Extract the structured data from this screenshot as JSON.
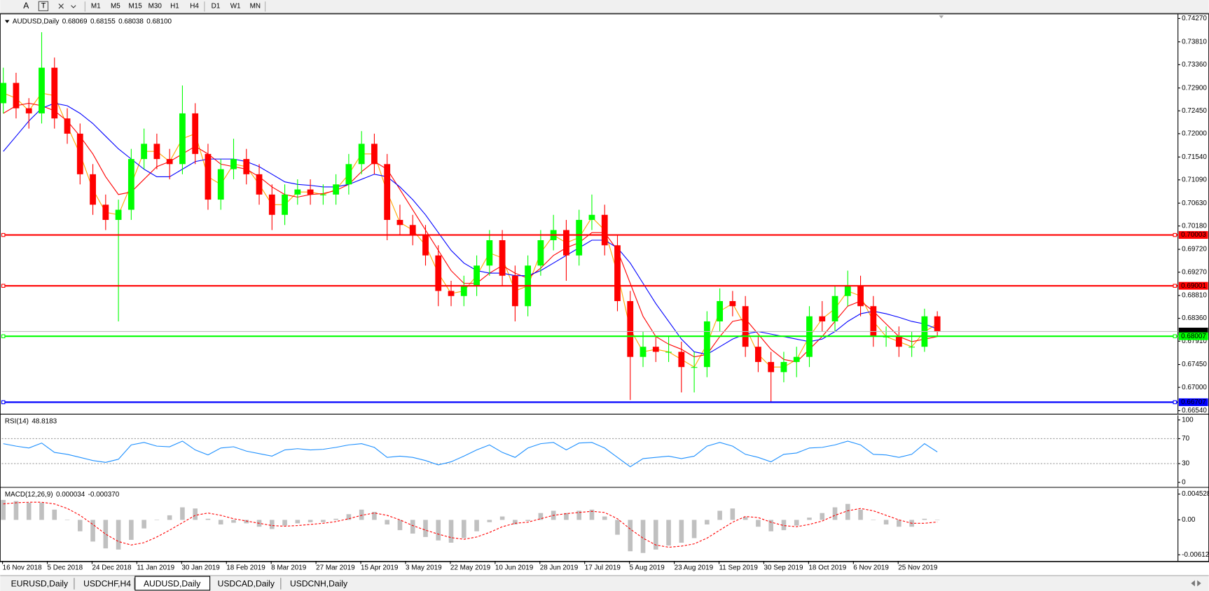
{
  "toolbar": {
    "tools": [
      "A",
      "T"
    ],
    "timeframes": [
      "M1",
      "M5",
      "M15",
      "M30",
      "H1",
      "H4",
      "D1",
      "W1",
      "MN"
    ]
  },
  "tabs": [
    "EURUSD,Daily",
    "USDCHF,H4",
    "AUDUSD,Daily",
    "USDCAD,Daily",
    "USDCNH,Daily"
  ],
  "active_tab": 2,
  "chart_data": [
    {
      "type": "candlestick",
      "title": "AUDUSD,Daily",
      "quote": [
        "0.68069",
        "0.68155",
        "0.68038",
        "0.68100"
      ],
      "ylim": [
        0.66479,
        0.74361
      ],
      "yticks": [
        {
          "value": 0.7427,
          "label": "0.74270"
        },
        {
          "value": 0.7381,
          "label": "0.73810"
        },
        {
          "value": 0.7336,
          "label": "0.73360"
        },
        {
          "value": 0.729,
          "label": "0.72900"
        },
        {
          "value": 0.7245,
          "label": "0.72450"
        },
        {
          "value": 0.72,
          "label": "0.72000"
        },
        {
          "value": 0.7154,
          "label": "0.71540"
        },
        {
          "value": 0.7109,
          "label": "0.71090"
        },
        {
          "value": 0.7063,
          "label": "0.70630"
        },
        {
          "value": 0.7018,
          "label": "0.70180"
        },
        {
          "value": 0.6972,
          "label": "0.69720"
        },
        {
          "value": 0.6927,
          "label": "0.69270"
        },
        {
          "value": 0.6881,
          "label": "0.68810"
        },
        {
          "value": 0.6836,
          "label": "0.68360"
        },
        {
          "value": 0.6791,
          "label": "0.67910"
        },
        {
          "value": 0.6745,
          "label": "0.67450"
        },
        {
          "value": 0.67,
          "label": "0.67000"
        },
        {
          "value": 0.6654,
          "label": "0.66540"
        }
      ],
      "up_color": "#00ff00",
      "down_color": "#ff0000",
      "candles": [
        [
          0.726,
          0.733,
          0.724,
          0.73
        ],
        [
          0.73,
          0.732,
          0.723,
          0.725
        ],
        [
          0.725,
          0.727,
          0.721,
          0.724
        ],
        [
          0.724,
          0.74,
          0.722,
          0.733
        ],
        [
          0.733,
          0.735,
          0.721,
          0.723
        ],
        [
          0.723,
          0.725,
          0.718,
          0.72
        ],
        [
          0.72,
          0.722,
          0.71,
          0.712
        ],
        [
          0.712,
          0.714,
          0.704,
          0.706
        ],
        [
          0.706,
          0.708,
          0.701,
          0.703
        ],
        [
          0.703,
          0.707,
          0.683,
          0.705
        ],
        [
          0.705,
          0.717,
          0.703,
          0.715
        ],
        [
          0.715,
          0.721,
          0.713,
          0.718
        ],
        [
          0.718,
          0.72,
          0.713,
          0.715
        ],
        [
          0.715,
          0.717,
          0.711,
          0.714
        ],
        [
          0.714,
          0.7295,
          0.712,
          0.724
        ],
        [
          0.724,
          0.726,
          0.714,
          0.716
        ],
        [
          0.716,
          0.718,
          0.705,
          0.707
        ],
        [
          0.707,
          0.715,
          0.705,
          0.713
        ],
        [
          0.713,
          0.719,
          0.711,
          0.715
        ],
        [
          0.715,
          0.717,
          0.71,
          0.712
        ],
        [
          0.712,
          0.714,
          0.706,
          0.708
        ],
        [
          0.708,
          0.71,
          0.701,
          0.704
        ],
        [
          0.704,
          0.71,
          0.702,
          0.708
        ],
        [
          0.708,
          0.711,
          0.706,
          0.709
        ],
        [
          0.709,
          0.711,
          0.706,
          0.708
        ],
        [
          0.708,
          0.71,
          0.706,
          0.708
        ],
        [
          0.708,
          0.712,
          0.706,
          0.71
        ],
        [
          0.71,
          0.716,
          0.708,
          0.714
        ],
        [
          0.714,
          0.7205,
          0.712,
          0.718
        ],
        [
          0.718,
          0.72,
          0.712,
          0.714
        ],
        [
          0.714,
          0.716,
          0.699,
          0.703
        ],
        [
          0.703,
          0.706,
          0.7,
          0.702
        ],
        [
          0.702,
          0.704,
          0.698,
          0.7
        ],
        [
          0.7,
          0.702,
          0.694,
          0.696
        ],
        [
          0.696,
          0.698,
          0.686,
          0.689
        ],
        [
          0.689,
          0.691,
          0.686,
          0.688
        ],
        [
          0.688,
          0.692,
          0.686,
          0.69
        ],
        [
          0.69,
          0.696,
          0.688,
          0.694
        ],
        [
          0.694,
          0.701,
          0.692,
          0.699
        ],
        [
          0.699,
          0.701,
          0.69,
          0.692
        ],
        [
          0.692,
          0.694,
          0.683,
          0.686
        ],
        [
          0.686,
          0.696,
          0.684,
          0.694
        ],
        [
          0.694,
          0.701,
          0.692,
          0.699
        ],
        [
          0.699,
          0.704,
          0.697,
          0.701
        ],
        [
          0.701,
          0.703,
          0.691,
          0.696
        ],
        [
          0.696,
          0.705,
          0.694,
          0.703
        ],
        [
          0.703,
          0.708,
          0.701,
          0.704
        ],
        [
          0.704,
          0.706,
          0.696,
          0.698
        ],
        [
          0.698,
          0.7,
          0.685,
          0.687
        ],
        [
          0.687,
          0.689,
          0.6675,
          0.676
        ],
        [
          0.676,
          0.681,
          0.674,
          0.678
        ],
        [
          0.678,
          0.68,
          0.675,
          0.677
        ],
        [
          0.677,
          0.68,
          0.675,
          0.677
        ],
        [
          0.677,
          0.679,
          0.669,
          0.674
        ],
        [
          0.674,
          0.677,
          0.669,
          0.674
        ],
        [
          0.674,
          0.685,
          0.672,
          0.683
        ],
        [
          0.683,
          0.6895,
          0.681,
          0.687
        ],
        [
          0.687,
          0.689,
          0.684,
          0.686
        ],
        [
          0.686,
          0.688,
          0.676,
          0.678
        ],
        [
          0.678,
          0.68,
          0.673,
          0.675
        ],
        [
          0.675,
          0.677,
          0.667,
          0.673
        ],
        [
          0.673,
          0.677,
          0.671,
          0.675
        ],
        [
          0.675,
          0.678,
          0.672,
          0.676
        ],
        [
          0.676,
          0.686,
          0.674,
          0.684
        ],
        [
          0.684,
          0.687,
          0.681,
          0.683
        ],
        [
          0.683,
          0.69,
          0.681,
          0.688
        ],
        [
          0.688,
          0.693,
          0.686,
          0.69
        ],
        [
          0.69,
          0.692,
          0.684,
          0.686
        ],
        [
          0.686,
          0.688,
          0.678,
          0.68
        ],
        [
          0.68,
          0.682,
          0.678,
          0.68
        ],
        [
          0.68,
          0.682,
          0.676,
          0.678
        ],
        [
          0.678,
          0.681,
          0.676,
          0.678
        ],
        [
          0.678,
          0.6855,
          0.677,
          0.684
        ],
        [
          0.684,
          0.685,
          0.68,
          0.681
        ]
      ],
      "series": [
        {
          "color": "#ffa500",
          "values": [
            0.728,
            0.727,
            0.7245,
            0.728,
            0.7275,
            0.7215,
            0.716,
            0.709,
            0.7045,
            0.704,
            0.71,
            0.7165,
            0.7165,
            0.7145,
            0.719,
            0.72,
            0.7115,
            0.71,
            0.714,
            0.7135,
            0.71,
            0.706,
            0.706,
            0.7085,
            0.7085,
            0.708,
            0.709,
            0.712,
            0.716,
            0.716,
            0.7085,
            0.7025,
            0.701,
            0.698,
            0.6925,
            0.6885,
            0.689,
            0.692,
            0.6965,
            0.6955,
            0.689,
            0.69,
            0.6965,
            0.7,
            0.6985,
            0.6995,
            0.7035,
            0.701,
            0.6925,
            0.6815,
            0.677,
            0.6775,
            0.677,
            0.6755,
            0.674,
            0.6785,
            0.685,
            0.6865,
            0.682,
            0.6765,
            0.674,
            0.674,
            0.6755,
            0.68,
            0.6835,
            0.6855,
            0.689,
            0.688,
            0.683,
            0.68,
            0.679,
            0.678,
            0.681,
            0.6825
          ]
        },
        {
          "color": "#ff0000",
          "values": [
            0.724,
            0.7255,
            0.726,
            0.7255,
            0.7245,
            0.7225,
            0.7195,
            0.716,
            0.7115,
            0.708,
            0.7085,
            0.711,
            0.7135,
            0.7145,
            0.716,
            0.7175,
            0.716,
            0.714,
            0.7135,
            0.713,
            0.7115,
            0.7095,
            0.708,
            0.7075,
            0.708,
            0.7082,
            0.7088,
            0.71,
            0.7125,
            0.7145,
            0.713,
            0.709,
            0.705,
            0.701,
            0.697,
            0.693,
            0.6905,
            0.6905,
            0.6925,
            0.694,
            0.6925,
            0.6915,
            0.6935,
            0.696,
            0.6975,
            0.6985,
            0.7005,
            0.7005,
            0.697,
            0.6905,
            0.684,
            0.68,
            0.6785,
            0.6775,
            0.676,
            0.6765,
            0.68,
            0.683,
            0.6835,
            0.6805,
            0.6775,
            0.6755,
            0.675,
            0.6775,
            0.68,
            0.683,
            0.686,
            0.687,
            0.685,
            0.6825,
            0.68,
            0.679,
            0.6795,
            0.68
          ]
        },
        {
          "color": "#0000ff",
          "values": [
            0.7165,
            0.7195,
            0.7225,
            0.725,
            0.726,
            0.7255,
            0.724,
            0.722,
            0.7195,
            0.717,
            0.715,
            0.713,
            0.7115,
            0.7115,
            0.713,
            0.7145,
            0.715,
            0.715,
            0.715,
            0.7145,
            0.7135,
            0.712,
            0.7105,
            0.71,
            0.7098,
            0.7095,
            0.7095,
            0.71,
            0.711,
            0.712,
            0.7115,
            0.7095,
            0.707,
            0.704,
            0.7005,
            0.697,
            0.6945,
            0.693,
            0.6925,
            0.6925,
            0.692,
            0.692,
            0.693,
            0.6945,
            0.696,
            0.6975,
            0.699,
            0.699,
            0.6975,
            0.6945,
            0.6905,
            0.6865,
            0.683,
            0.6795,
            0.677,
            0.6765,
            0.678,
            0.6795,
            0.6805,
            0.681,
            0.6805,
            0.68,
            0.6795,
            0.679,
            0.6795,
            0.681,
            0.683,
            0.6845,
            0.685,
            0.6845,
            0.6838,
            0.683,
            0.6825,
            0.6815
          ]
        }
      ],
      "levels": [
        {
          "value": 0.70003,
          "label": "0.70003",
          "color": "#ff0000"
        },
        {
          "value": 0.69001,
          "label": "0.69001",
          "color": "#ff0000"
        },
        {
          "value": 0.68007,
          "label": "0.68007",
          "color": "#00ff00"
        },
        {
          "value": 0.66707,
          "label": "0.66707",
          "color": "#0000ff"
        }
      ],
      "current": {
        "value": 0.681,
        "label": "0.68100"
      },
      "date_labels": [
        "16 Nov 2018",
        "5 Dec 2018",
        "24 Dec 2018",
        "11 Jan 2019",
        "30 Jan 2019",
        "18 Feb 2019",
        "8 Mar 2019",
        "27 Mar 2019",
        "15 Apr 2019",
        "3 May 2019",
        "22 May 2019",
        "10 Jun 2019",
        "28 Jun 2019",
        "17 Jul 2019",
        "5 Aug 2019",
        "23 Aug 2019",
        "11 Sep 2019",
        "30 Sep 2019",
        "18 Oct 2019",
        "6 Nov 2019",
        "25 Nov 2019"
      ]
    },
    {
      "type": "line",
      "title": "RSI(14)",
      "ylim": [
        -7.4,
        107.4
      ],
      "yticks": [
        100,
        70,
        30,
        0
      ],
      "levels": [
        70,
        30
      ],
      "series": [
        {
          "color": "#1e90ff",
          "values": [
            62,
            58,
            55,
            63,
            48,
            45,
            40,
            35,
            32,
            37,
            60,
            64,
            58,
            57,
            66,
            52,
            44,
            55,
            57,
            50,
            46,
            42,
            52,
            54,
            52,
            53,
            56,
            60,
            62,
            56,
            40,
            42,
            40,
            35,
            28,
            33,
            42,
            52,
            60,
            48,
            40,
            55,
            62,
            64,
            52,
            63,
            64,
            55,
            40,
            25,
            38,
            40,
            42,
            38,
            42,
            58,
            64,
            58,
            45,
            40,
            33,
            45,
            47,
            55,
            56,
            60,
            66,
            60,
            45,
            44,
            40,
            45,
            62,
            48.8183
          ]
        }
      ]
    },
    {
      "type": "macd",
      "title": "MACD(12,26,9)",
      "readout": [
        "0.000034",
        "-0.000370"
      ],
      "ylim": [
        -0.0072,
        0.0055
      ],
      "yticks": [
        0.004528,
        {
          "value": 0,
          "label": "0.00"
        },
        -0.006122
      ],
      "series": [
        {
          "color": "#c0c0c0",
          "values": [
            0.0035,
            0.0033,
            0.003,
            0.003,
            0.0018,
            0,
            -0.002,
            -0.0038,
            -0.005,
            -0.0052,
            -0.0035,
            -0.0015,
            0,
            0.0008,
            0.0022,
            0.002,
            0.0002,
            -0.0008,
            -0.0005,
            -0.0006,
            -0.0012,
            -0.0016,
            -0.001,
            -0.0006,
            -0.0004,
            -0.0004,
            0.0002,
            0.001,
            0.0018,
            0.0014,
            -0.0008,
            -0.0018,
            -0.0024,
            -0.003,
            -0.0036,
            -0.004,
            -0.0032,
            -0.002,
            -0.0004,
            0.0006,
            -0.0008,
            -0.0002,
            0.0012,
            0.0016,
            0.0012,
            0.0016,
            0.0018,
            0.0006,
            -0.0026,
            -0.0055,
            -0.0058,
            -0.0052,
            -0.0045,
            -0.004,
            -0.0032,
            -0.0008,
            0.0016,
            0.002,
            0.0005,
            -0.0012,
            -0.002,
            -0.0018,
            -0.001,
            0.0004,
            0.0012,
            0.0022,
            0.0028,
            0.0018,
            0,
            -0.0008,
            -0.0012,
            -0.0012,
            0.0002,
            3.4e-05
          ]
        },
        {
          "color": "#ff0000",
          "values": [
            0.0028,
            0.003,
            0.0031,
            0.0031,
            0.0028,
            0.002,
            0.0008,
            -0.0008,
            -0.0025,
            -0.0038,
            -0.0044,
            -0.004,
            -0.003,
            -0.0018,
            -0.0005,
            0.0008,
            0.0012,
            0.0008,
            0.0002,
            -0.0002,
            -0.0006,
            -0.001,
            -0.0011,
            -0.001,
            -0.0008,
            -0.0006,
            -0.0003,
            0.0002,
            0.0008,
            0.0012,
            0.0008,
            0,
            -0.001,
            -0.0018,
            -0.0025,
            -0.0031,
            -0.0034,
            -0.003,
            -0.0022,
            -0.0012,
            -0.0006,
            -0.0004,
            0.0002,
            0.0008,
            0.0011,
            0.0013,
            0.0015,
            0.0013,
            0.0002,
            -0.0016,
            -0.0032,
            -0.0044,
            -0.0048,
            -0.0046,
            -0.0042,
            -0.0032,
            -0.0018,
            -0.0004,
            0.0006,
            0.0004,
            -0.0004,
            -0.001,
            -0.0012,
            -0.0008,
            -0.0002,
            0.0008,
            0.0016,
            0.002,
            0.0016,
            0.0008,
            0,
            -0.0006,
            -0.0006,
            -0.00037
          ]
        }
      ]
    }
  ]
}
